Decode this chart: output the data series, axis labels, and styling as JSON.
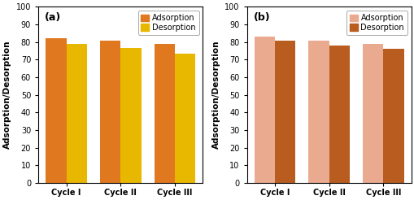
{
  "subplot_a": {
    "label": "(a)",
    "categories": [
      "Cycle I",
      "Cycle II",
      "Cycle III"
    ],
    "adsorption": [
      82,
      80.5,
      79
    ],
    "desorption": [
      79,
      76.5,
      73.5
    ],
    "adsorption_color": "#E07820",
    "desorption_color": "#E8B800",
    "legend_adsorption": "Adsorption",
    "legend_desorption": "Desorption"
  },
  "subplot_b": {
    "label": "(b)",
    "categories": [
      "Cycle I",
      "Cycle II",
      "Cycle III"
    ],
    "adsorption": [
      83,
      80.5,
      79
    ],
    "desorption": [
      80.5,
      78,
      76
    ],
    "adsorption_color": "#EAAA90",
    "desorption_color": "#B85C20",
    "legend_adsorption": "Adsorption",
    "legend_desorption": "Desorption"
  },
  "ylabel": "Adsorption/Desorption",
  "ylim": [
    0,
    100
  ],
  "yticks": [
    0,
    10,
    20,
    30,
    40,
    50,
    60,
    70,
    80,
    90,
    100
  ],
  "bar_width": 0.38,
  "tick_fontsize": 7,
  "label_fontsize": 9,
  "legend_fontsize": 7,
  "axis_label_fontsize": 7.5,
  "figure_bg": "#ffffff",
  "axes_bg": "#ffffff"
}
